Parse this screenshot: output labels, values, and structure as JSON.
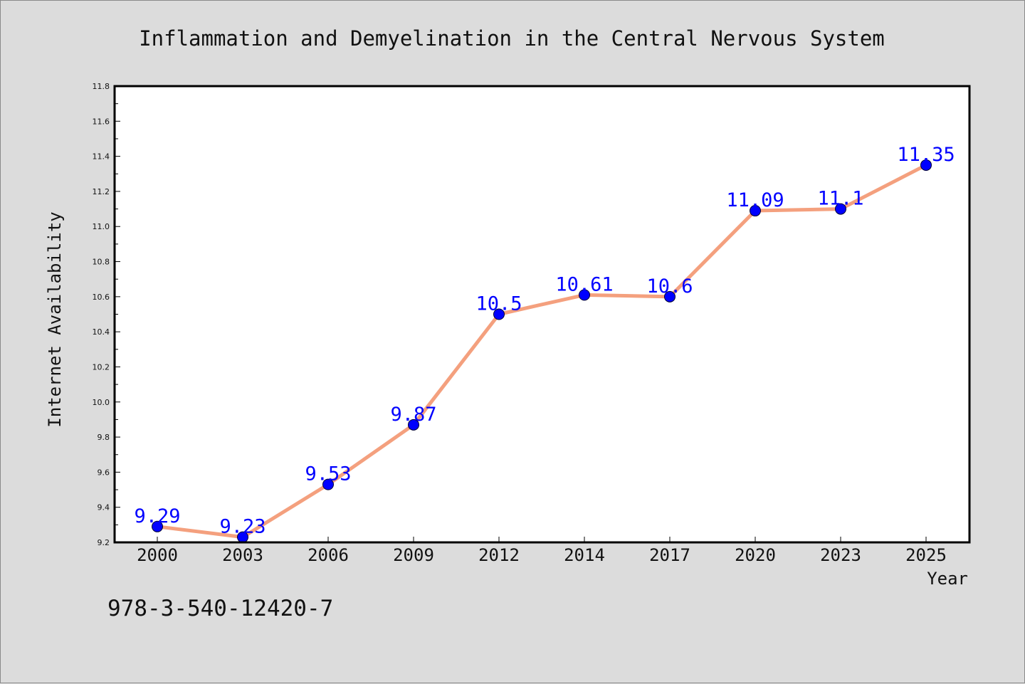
{
  "chart_data": {
    "type": "line",
    "title": "Inflammation and Demyelination in the Central Nervous System",
    "xlabel": "Year",
    "ylabel": "Internet Availability",
    "categories": [
      "2000",
      "2003",
      "2006",
      "2009",
      "2012",
      "2014",
      "2017",
      "2020",
      "2023",
      "2025"
    ],
    "values": [
      9.29,
      9.23,
      9.53,
      9.87,
      10.5,
      10.61,
      10.6,
      11.09,
      11.1,
      11.35
    ],
    "data_labels": [
      "9.29",
      "9.23",
      "9.53",
      "9.87",
      "10.5",
      "10.61",
      "10.6",
      "11.09",
      "11.1",
      "11.35"
    ],
    "ylim": [
      9.2,
      11.8
    ],
    "yticks": [
      "9.2",
      "9.4",
      "9.6",
      "9.8",
      "10.0",
      "10.2",
      "10.4",
      "10.6",
      "10.8",
      "11.0",
      "11.2",
      "11.4",
      "11.6",
      "11.8"
    ],
    "grid": false,
    "line_color": "#f4a07e",
    "marker_color": "#0000ff",
    "label_color": "#0000ff"
  },
  "footnote": "978-3-540-12420-7"
}
